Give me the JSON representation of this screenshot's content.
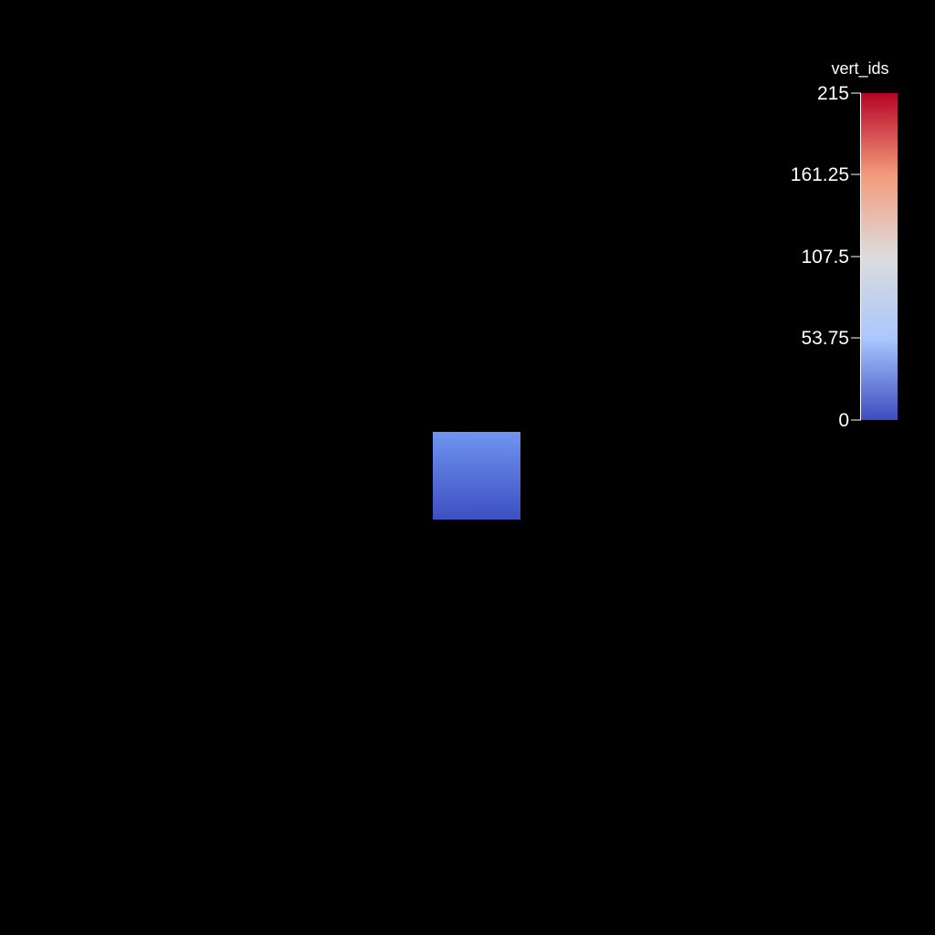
{
  "scalar_bar": {
    "title": "vert_ids",
    "ticks": [
      "215",
      "161.25",
      "107.5",
      "53.75",
      "0"
    ],
    "colormap": [
      "#b40426",
      "#f49a7b",
      "#dddcdc",
      "#aac7fd",
      "#3b4cc0"
    ]
  },
  "mesh": {
    "gradient_top": "#7094f0",
    "gradient_bottom": "#3d4fc2"
  }
}
